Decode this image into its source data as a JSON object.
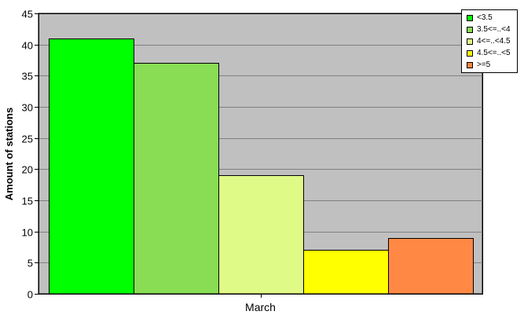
{
  "chart_data": {
    "type": "bar",
    "categories": [
      "March"
    ],
    "series": [
      {
        "name": "<3.5",
        "values": [
          41
        ],
        "color": "#00ff00"
      },
      {
        "name": "3.5<=..<4",
        "values": [
          37
        ],
        "color": "#88dd55"
      },
      {
        "name": "4<=..<4.5",
        "values": [
          19
        ],
        "color": "#e0fa88"
      },
      {
        "name": "4.5<=..<5",
        "values": [
          7
        ],
        "color": "#ffff00"
      },
      {
        "name": ">=5",
        "values": [
          9
        ],
        "color": "#ff8844"
      }
    ],
    "title": "",
    "xlabel": "",
    "ylabel": "Amount of stations",
    "ylim": [
      0,
      45
    ],
    "yticks": [
      "0",
      "5",
      "10",
      "15",
      "20",
      "25",
      "30",
      "35",
      "40",
      "45"
    ],
    "grid": true,
    "legend_position": "top-right",
    "plot_background": "#c0c0c0"
  }
}
